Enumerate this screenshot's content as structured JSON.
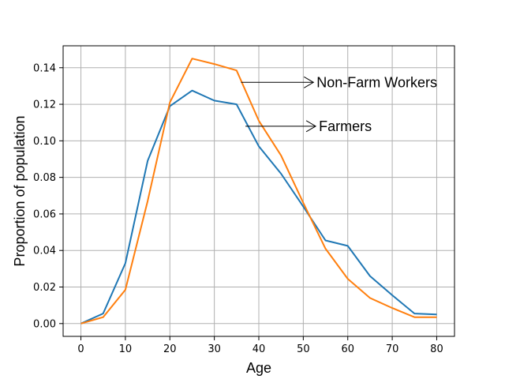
{
  "chart_data": {
    "type": "line",
    "title": "",
    "xlabel": "Age",
    "ylabel": "Proportion of population",
    "x": [
      0,
      5,
      10,
      15,
      20,
      25,
      30,
      35,
      40,
      45,
      50,
      55,
      60,
      65,
      70,
      75,
      80
    ],
    "xlim": [
      -4,
      84
    ],
    "ylim": [
      -0.007,
      0.152
    ],
    "xticks": [
      0,
      10,
      20,
      30,
      40,
      50,
      60,
      70,
      80
    ],
    "xtick_labels": [
      "0",
      "10",
      "20",
      "30",
      "40",
      "50",
      "60",
      "70",
      "80"
    ],
    "yticks": [
      0.0,
      0.02,
      0.04,
      0.06,
      0.08,
      0.1,
      0.12,
      0.14
    ],
    "ytick_labels": [
      "0.00",
      "0.02",
      "0.04",
      "0.06",
      "0.08",
      "0.10",
      "0.12",
      "0.14"
    ],
    "grid": true,
    "legend": "none",
    "series": [
      {
        "color": "#1f77b4",
        "values": [
          0.0,
          0.0055,
          0.033,
          0.089,
          0.119,
          0.1275,
          0.122,
          0.12,
          0.097,
          0.082,
          0.064,
          0.0455,
          0.0425,
          0.026,
          0.0155,
          0.0055,
          0.005
        ]
      },
      {
        "color": "#ff7f0e",
        "values": [
          0.0,
          0.0035,
          0.0185,
          0.067,
          0.121,
          0.145,
          0.142,
          0.1385,
          0.111,
          0.092,
          0.066,
          0.041,
          0.0245,
          0.014,
          0.0085,
          0.0035,
          0.0035
        ]
      }
    ],
    "annotations": [
      {
        "text": "Non-Farm Workers",
        "xy": [
          36,
          0.132
        ],
        "xytext": [
          53,
          0.132
        ]
      },
      {
        "text": "Farmers",
        "xy": [
          37,
          0.108
        ],
        "xytext": [
          53.5,
          0.108
        ]
      }
    ]
  }
}
